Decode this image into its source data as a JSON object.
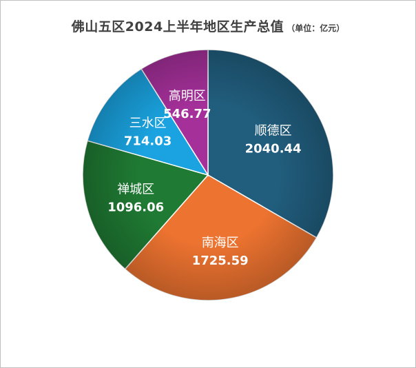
{
  "chart_data": {
    "type": "pie",
    "title": "佛山五区2024上半年地区生产总值",
    "unit": "（单位：亿元）",
    "slices": [
      {
        "name": "顺德区",
        "value": 2040.44,
        "value_text": "2040.44",
        "color": "#215e7e"
      },
      {
        "name": "南海区",
        "value": 1725.59,
        "value_text": "1725.59",
        "color": "#ed7330"
      },
      {
        "name": "禅城区",
        "value": 1096.06,
        "value_text": "1096.06",
        "color": "#1f7a33"
      },
      {
        "name": "三水区",
        "value": 714.03,
        "value_text": "714.03",
        "color": "#1aa3e0"
      },
      {
        "name": "高明区",
        "value": 546.77,
        "value_text": "546.77",
        "color": "#a5309a"
      }
    ]
  }
}
